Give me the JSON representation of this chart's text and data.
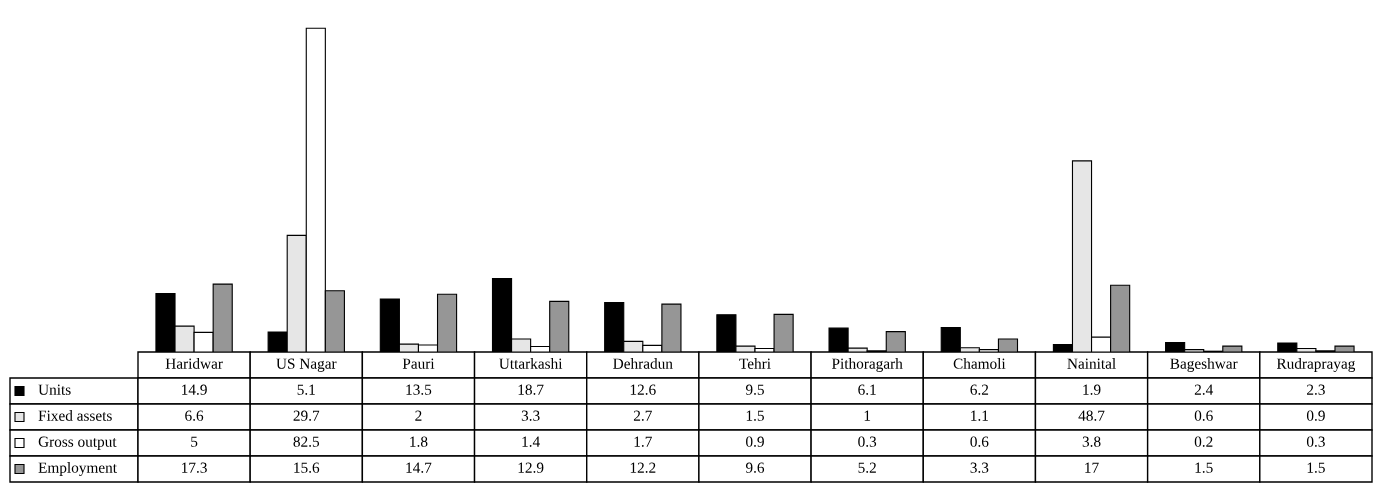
{
  "chart_data": {
    "type": "bar",
    "categories": [
      "Haridwar",
      "US Nagar",
      "Pauri",
      "Uttarkashi",
      "Dehradun",
      "Tehri",
      "Pithoragarh",
      "Chamoli",
      "Nainital",
      "Bageshwar",
      "Rudraprayag"
    ],
    "series": [
      {
        "name": "Units",
        "color": "#000000",
        "values": [
          14.9,
          5.1,
          13.5,
          18.7,
          12.6,
          9.5,
          6.1,
          6.2,
          1.9,
          2.4,
          2.3
        ]
      },
      {
        "name": "Fixed assets",
        "color": "#e6e6e6",
        "values": [
          6.6,
          29.7,
          2,
          3.3,
          2.7,
          1.5,
          1,
          1.1,
          48.7,
          0.6,
          0.9
        ]
      },
      {
        "name": "Gross output",
        "color": "#ffffff",
        "values": [
          5,
          82.5,
          1.8,
          1.4,
          1.7,
          0.9,
          0.3,
          0.6,
          3.8,
          0.2,
          0.3
        ]
      },
      {
        "name": "Employment",
        "color": "#969696",
        "values": [
          17.3,
          15.6,
          14.7,
          12.9,
          12.2,
          9.6,
          5.2,
          3.3,
          17,
          1.5,
          1.5
        ]
      }
    ],
    "data_labels": true,
    "legend": "bottom"
  }
}
